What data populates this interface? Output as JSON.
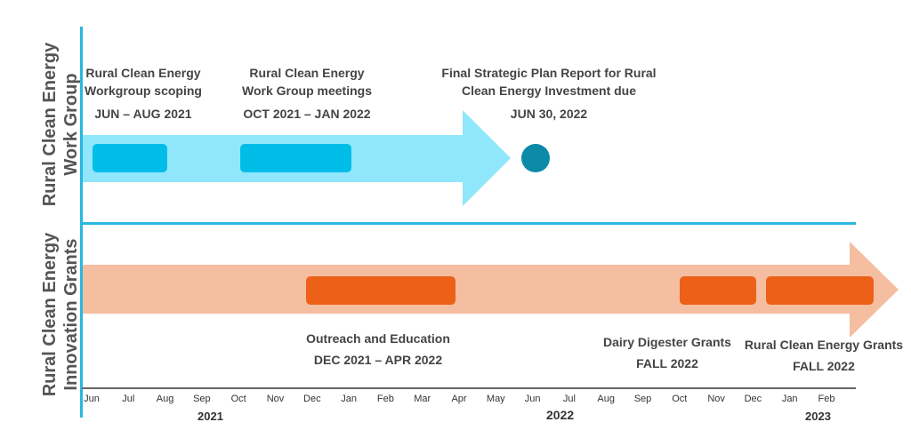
{
  "rows": {
    "work_group": "Rural Clean Energy Work Group",
    "grants": "Rural Clean Energy Innovation Grants"
  },
  "colors": {
    "divider": "#29b6e0",
    "row1_arrow": "#90e6fb",
    "row1_bar": "#00bde8",
    "milestone": "#0c8aa7",
    "row2_arrow": "#f5bea0",
    "row2_bar": "#ec6117"
  },
  "annotations": {
    "scoping": {
      "line1": "Rural Clean Energy",
      "line2": "Workgroup scoping",
      "date": "JUN – AUG 2021"
    },
    "meetings": {
      "line1": "Rural Clean Energy",
      "line2": "Work Group meetings",
      "date": "OCT 2021 – JAN 2022"
    },
    "final_report": {
      "line1": "Final Strategic Plan Report for Rural",
      "line2": "Clean Energy Investment due",
      "date": "JUN 30, 2022"
    },
    "outreach": {
      "line1": "Outreach and Education",
      "date": "DEC 2021 – APR 2022"
    },
    "dairy": {
      "line1": "Dairy Digester Grants",
      "date": "FALL 2022"
    },
    "rce_grants": {
      "line1": "Rural Clean Energy Grants",
      "date": "FALL 2022"
    }
  },
  "axis": {
    "months": [
      "Jun",
      "Jul",
      "Aug",
      "Sep",
      "Oct",
      "Nov",
      "Dec",
      "Jan",
      "Feb",
      "Mar",
      "Apr",
      "May",
      "Jun",
      "Jul",
      "Aug",
      "Sep",
      "Oct",
      "Nov",
      "Dec",
      "Jan",
      "Feb"
    ],
    "years": [
      "2021",
      "2022",
      "2023"
    ]
  }
}
